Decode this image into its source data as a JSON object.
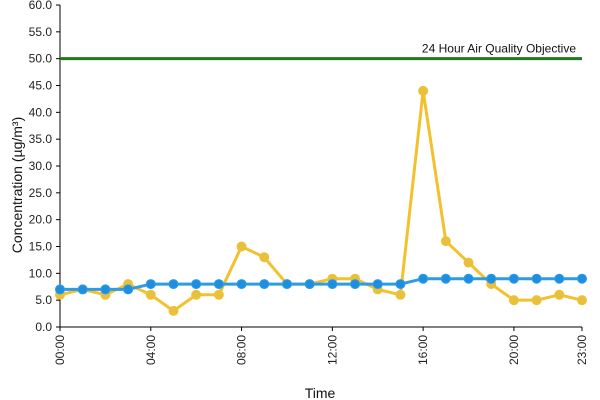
{
  "chart_data": {
    "type": "line",
    "xlabel": "Time",
    "ylabel": "Concentration (µg/m³)",
    "ylim": [
      0,
      60
    ],
    "y_ticks": [
      "0.0",
      "5.0",
      "10.0",
      "15.0",
      "20.0",
      "25.0",
      "30.0",
      "35.0",
      "40.0",
      "45.0",
      "50.0",
      "55.0",
      "60.0"
    ],
    "x": [
      0,
      1,
      2,
      3,
      4,
      5,
      6,
      7,
      8,
      9,
      10,
      11,
      12,
      13,
      14,
      15,
      16,
      17,
      18,
      19,
      20,
      21,
      22,
      23
    ],
    "x_tick_labels": [
      {
        "x": 0,
        "label": "00:00"
      },
      {
        "x": 4,
        "label": "04:00"
      },
      {
        "x": 8,
        "label": "08:00"
      },
      {
        "x": 12,
        "label": "12:00"
      },
      {
        "x": 16,
        "label": "16:00"
      },
      {
        "x": 20,
        "label": "20:00"
      },
      {
        "x": 23,
        "label": "23:00"
      }
    ],
    "grid": false,
    "series": [
      {
        "color": "#f2c12e",
        "marker_color": "#e8c040",
        "values": [
          6,
          7,
          6,
          8,
          6,
          3,
          6,
          6,
          15,
          13,
          8,
          8,
          9,
          9,
          7,
          6,
          44,
          16,
          12,
          8,
          5,
          5,
          6,
          5
        ]
      },
      {
        "color": "#2e9be6",
        "marker_color": "#1e8fe0",
        "values": [
          7,
          7,
          7,
          7,
          8,
          8,
          8,
          8,
          8,
          8,
          8,
          8,
          8,
          8,
          8,
          8,
          9,
          9,
          9,
          9,
          9,
          9,
          9,
          9
        ]
      }
    ],
    "reference_line": {
      "value": 50,
      "label": "24 Hour Air Quality Objective",
      "color": "#1e7a1e"
    }
  }
}
